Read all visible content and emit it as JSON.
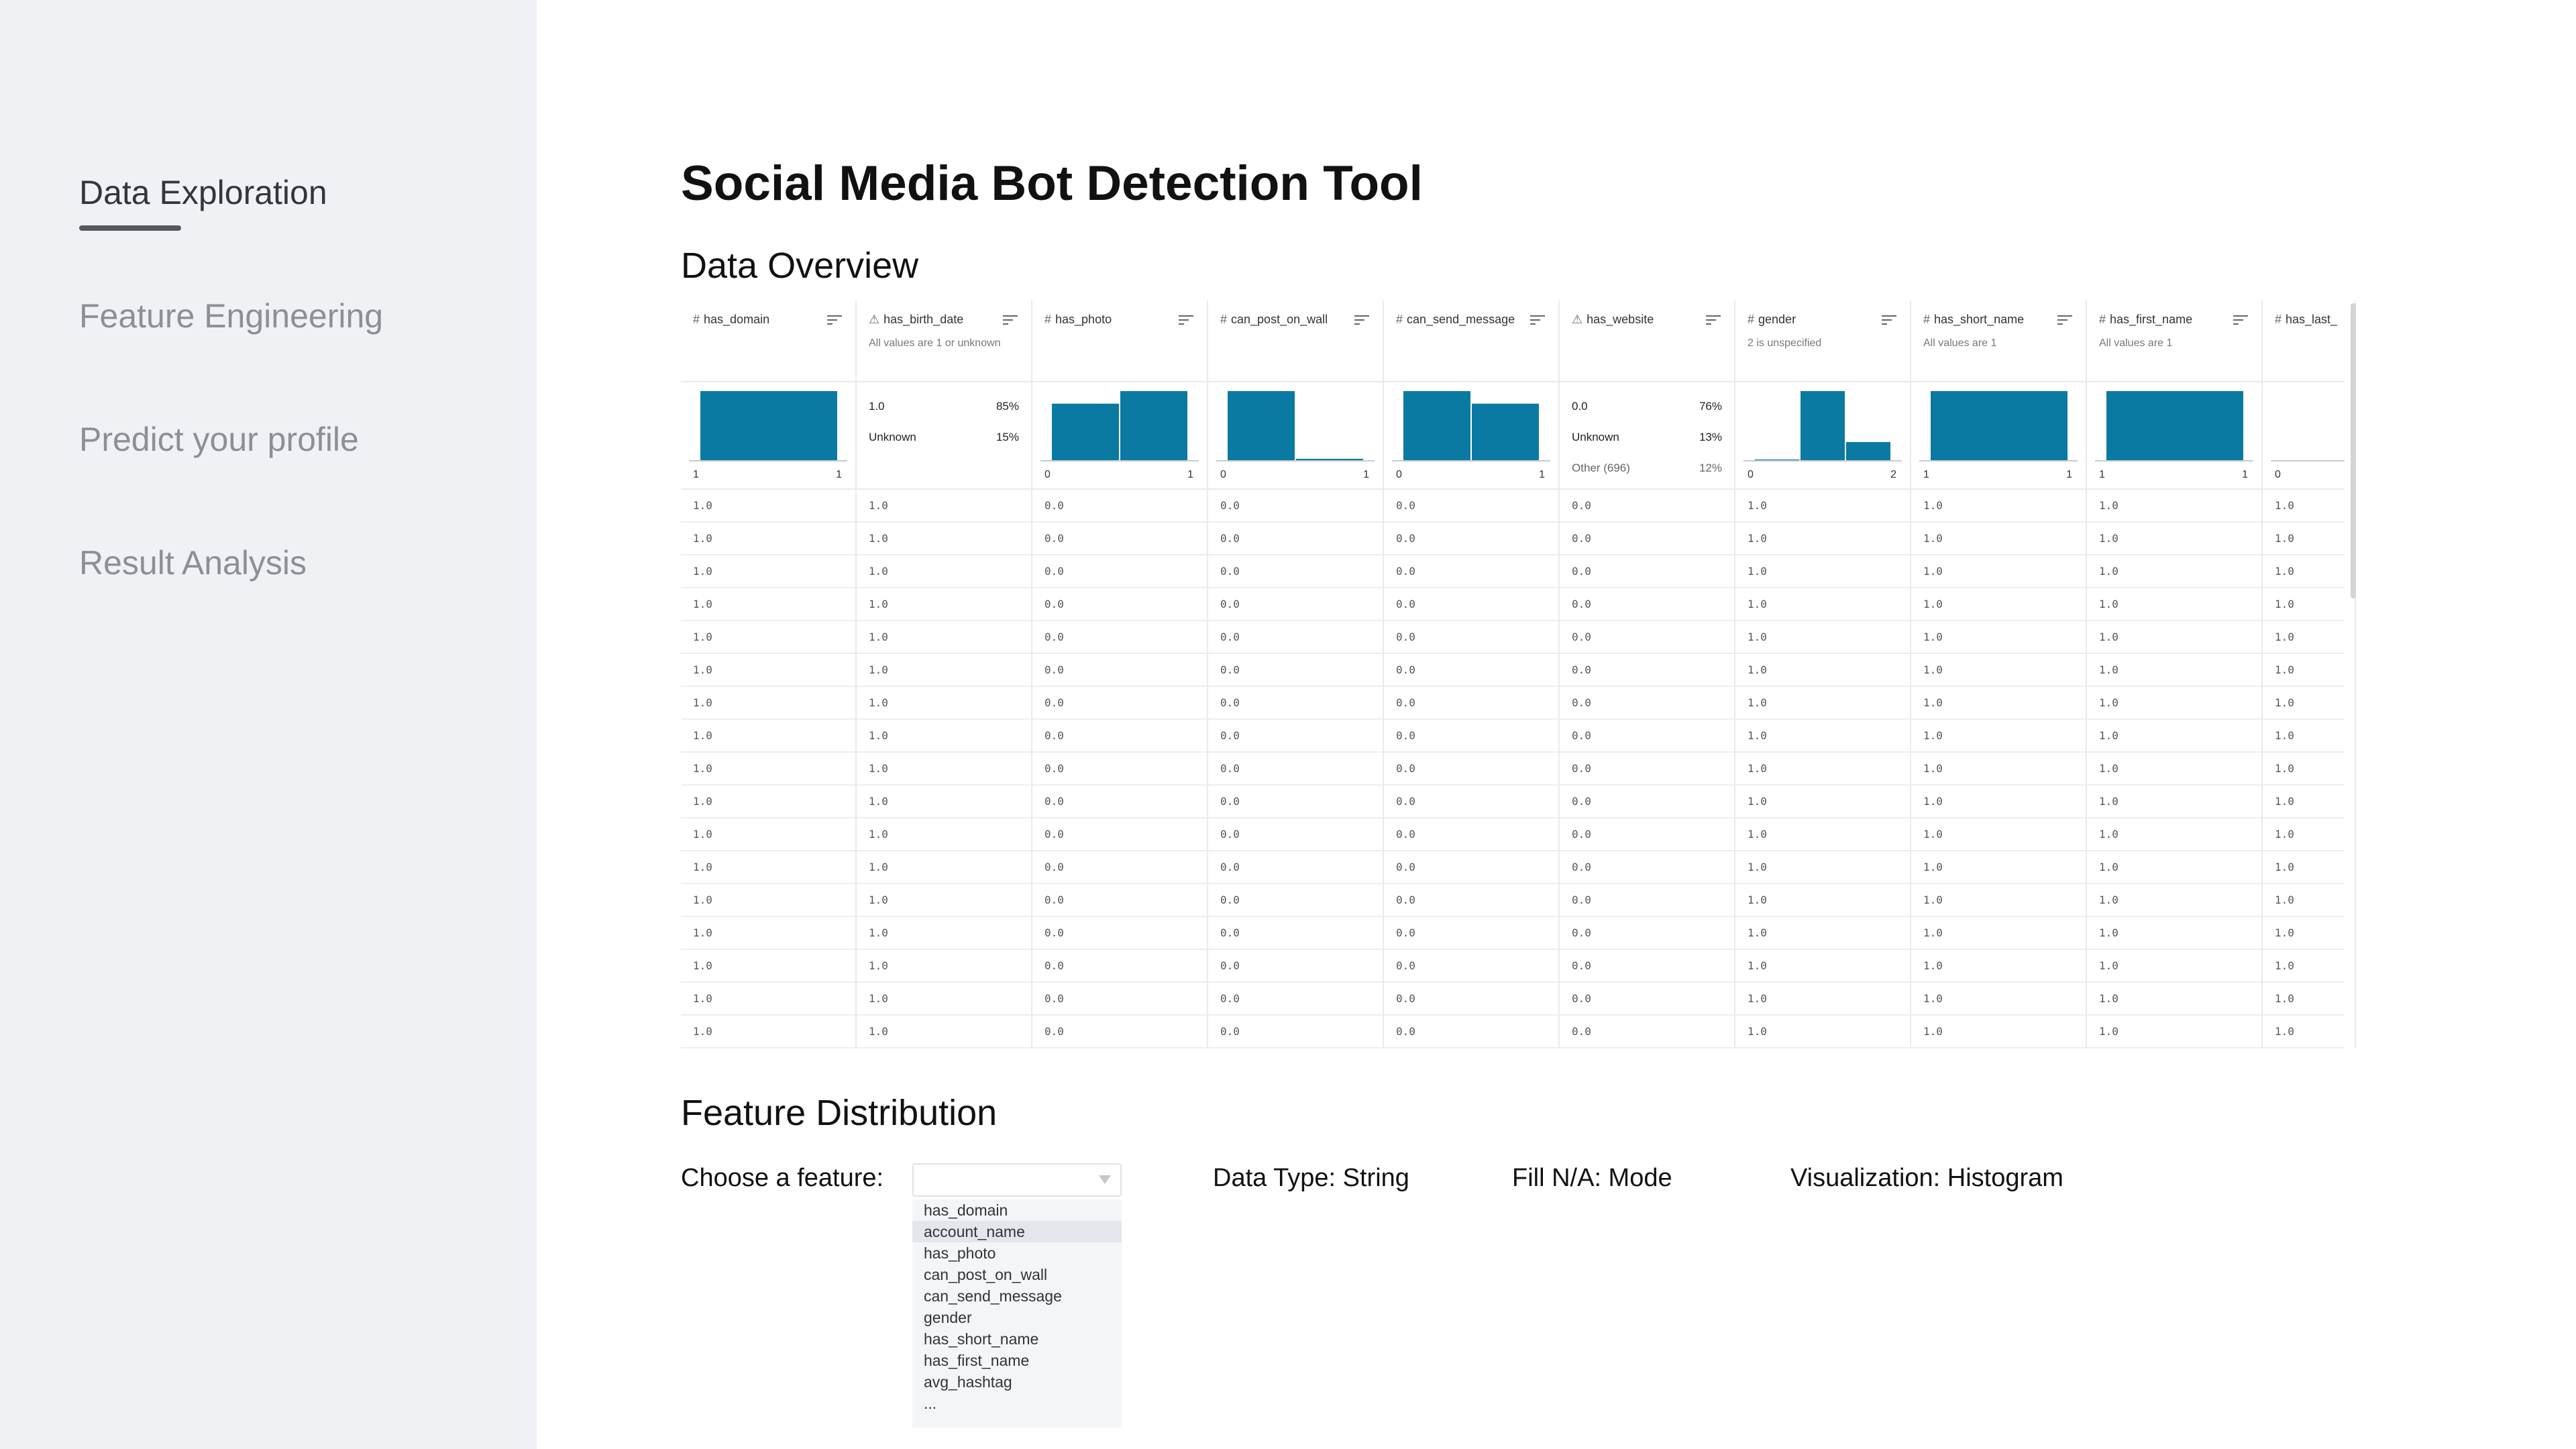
{
  "sidebar": {
    "items": [
      {
        "label": "Data Exploration",
        "active": true
      },
      {
        "label": "Feature Engineering",
        "active": false
      },
      {
        "label": "Predict your profile",
        "active": false
      },
      {
        "label": "Result Analysis",
        "active": false
      }
    ]
  },
  "main": {
    "title": "Social Media Bot Detection Tool",
    "data_overview_heading": "Data Overview",
    "feature_distribution_heading": "Feature Distribution"
  },
  "table": {
    "accent_color": "#0a7aa3",
    "columns": [
      {
        "type_icon": "#",
        "name": "has_domain",
        "note": "",
        "summary": {
          "kind": "hist",
          "bars": [
            1.0
          ],
          "min": "1",
          "max": "1"
        }
      },
      {
        "type_icon": "⚠",
        "name": "has_birth_date",
        "note": "All values are 1 or unknown",
        "summary": {
          "kind": "cat",
          "items": [
            {
              "label": "1.0",
              "pct": "85%"
            },
            {
              "label": "Unknown",
              "pct": "15%"
            }
          ]
        }
      },
      {
        "type_icon": "#",
        "name": "has_photo",
        "note": "",
        "summary": {
          "kind": "hist",
          "bars": [
            0.82,
            1.0
          ],
          "min": "0",
          "max": "1"
        }
      },
      {
        "type_icon": "#",
        "name": "can_post_on_wall",
        "note": "",
        "summary": {
          "kind": "hist",
          "bars": [
            1.0,
            0.03
          ],
          "min": "0",
          "max": "1"
        }
      },
      {
        "type_icon": "#",
        "name": "can_send_message",
        "note": "",
        "summary": {
          "kind": "hist",
          "bars": [
            1.0,
            0.82
          ],
          "min": "0",
          "max": "1"
        }
      },
      {
        "type_icon": "⚠",
        "name": "has_website",
        "note": "",
        "summary": {
          "kind": "cat",
          "items": [
            {
              "label": "0.0",
              "pct": "76%"
            },
            {
              "label": "Unknown",
              "pct": "13%"
            },
            {
              "label": "Other (696)",
              "pct": "12%"
            }
          ]
        }
      },
      {
        "type_icon": "#",
        "name": "gender",
        "note": "2 is unspecified",
        "summary": {
          "kind": "hist",
          "bars": [
            0.02,
            1.0,
            0.27
          ],
          "min": "0",
          "max": "2"
        }
      },
      {
        "type_icon": "#",
        "name": "has_short_name",
        "note": "All values are 1",
        "summary": {
          "kind": "hist",
          "bars": [
            1.0
          ],
          "min": "1",
          "max": "1"
        }
      },
      {
        "type_icon": "#",
        "name": "has_first_name",
        "note": "All values are 1",
        "summary": {
          "kind": "hist",
          "bars": [
            1.0
          ],
          "min": "1",
          "max": "1"
        }
      },
      {
        "type_icon": "#",
        "name": "has_last_",
        "note": "",
        "summary": {
          "kind": "hist",
          "bars": [],
          "min": "0",
          "max": ""
        }
      }
    ],
    "rows": [
      [
        "1.0",
        "1.0",
        "0.0",
        "0.0",
        "0.0",
        "0.0",
        "1.0",
        "1.0",
        "1.0",
        "1.0"
      ],
      [
        "1.0",
        "1.0",
        "0.0",
        "0.0",
        "0.0",
        "0.0",
        "1.0",
        "1.0",
        "1.0",
        "1.0"
      ],
      [
        "1.0",
        "1.0",
        "0.0",
        "0.0",
        "0.0",
        "0.0",
        "1.0",
        "1.0",
        "1.0",
        "1.0"
      ],
      [
        "1.0",
        "1.0",
        "0.0",
        "0.0",
        "0.0",
        "0.0",
        "1.0",
        "1.0",
        "1.0",
        "1.0"
      ],
      [
        "1.0",
        "1.0",
        "0.0",
        "0.0",
        "0.0",
        "0.0",
        "1.0",
        "1.0",
        "1.0",
        "1.0"
      ],
      [
        "1.0",
        "1.0",
        "0.0",
        "0.0",
        "0.0",
        "0.0",
        "1.0",
        "1.0",
        "1.0",
        "1.0"
      ],
      [
        "1.0",
        "1.0",
        "0.0",
        "0.0",
        "0.0",
        "0.0",
        "1.0",
        "1.0",
        "1.0",
        "1.0"
      ],
      [
        "1.0",
        "1.0",
        "0.0",
        "0.0",
        "0.0",
        "0.0",
        "1.0",
        "1.0",
        "1.0",
        "1.0"
      ],
      [
        "1.0",
        "1.0",
        "0.0",
        "0.0",
        "0.0",
        "0.0",
        "1.0",
        "1.0",
        "1.0",
        "1.0"
      ],
      [
        "1.0",
        "1.0",
        "0.0",
        "0.0",
        "0.0",
        "0.0",
        "1.0",
        "1.0",
        "1.0",
        "1.0"
      ],
      [
        "1.0",
        "1.0",
        "0.0",
        "0.0",
        "0.0",
        "0.0",
        "1.0",
        "1.0",
        "1.0",
        "1.0"
      ],
      [
        "1.0",
        "1.0",
        "0.0",
        "0.0",
        "0.0",
        "0.0",
        "1.0",
        "1.0",
        "1.0",
        "1.0"
      ],
      [
        "1.0",
        "1.0",
        "0.0",
        "0.0",
        "0.0",
        "0.0",
        "1.0",
        "1.0",
        "1.0",
        "1.0"
      ],
      [
        "1.0",
        "1.0",
        "0.0",
        "0.0",
        "0.0",
        "0.0",
        "1.0",
        "1.0",
        "1.0",
        "1.0"
      ],
      [
        "1.0",
        "1.0",
        "0.0",
        "0.0",
        "0.0",
        "0.0",
        "1.0",
        "1.0",
        "1.0",
        "1.0"
      ],
      [
        "1.0",
        "1.0",
        "0.0",
        "0.0",
        "0.0",
        "0.0",
        "1.0",
        "1.0",
        "1.0",
        "1.0"
      ],
      [
        "1.0",
        "1.0",
        "0.0",
        "0.0",
        "0.0",
        "0.0",
        "1.0",
        "1.0",
        "1.0",
        "1.0"
      ]
    ]
  },
  "feature": {
    "choose_label": "Choose a feature:",
    "data_type": "Data Type: String",
    "fill_na": "Fill N/A: Mode",
    "visualization": "Visualization: Histogram",
    "selected_value": "",
    "options": [
      "has_domain",
      "account_name",
      "has_photo",
      "can_post_on_wall",
      "can_send_message",
      "gender",
      "has_short_name",
      "has_first_name",
      "avg_hashtag",
      "..."
    ],
    "highlighted_option": "account_name"
  }
}
